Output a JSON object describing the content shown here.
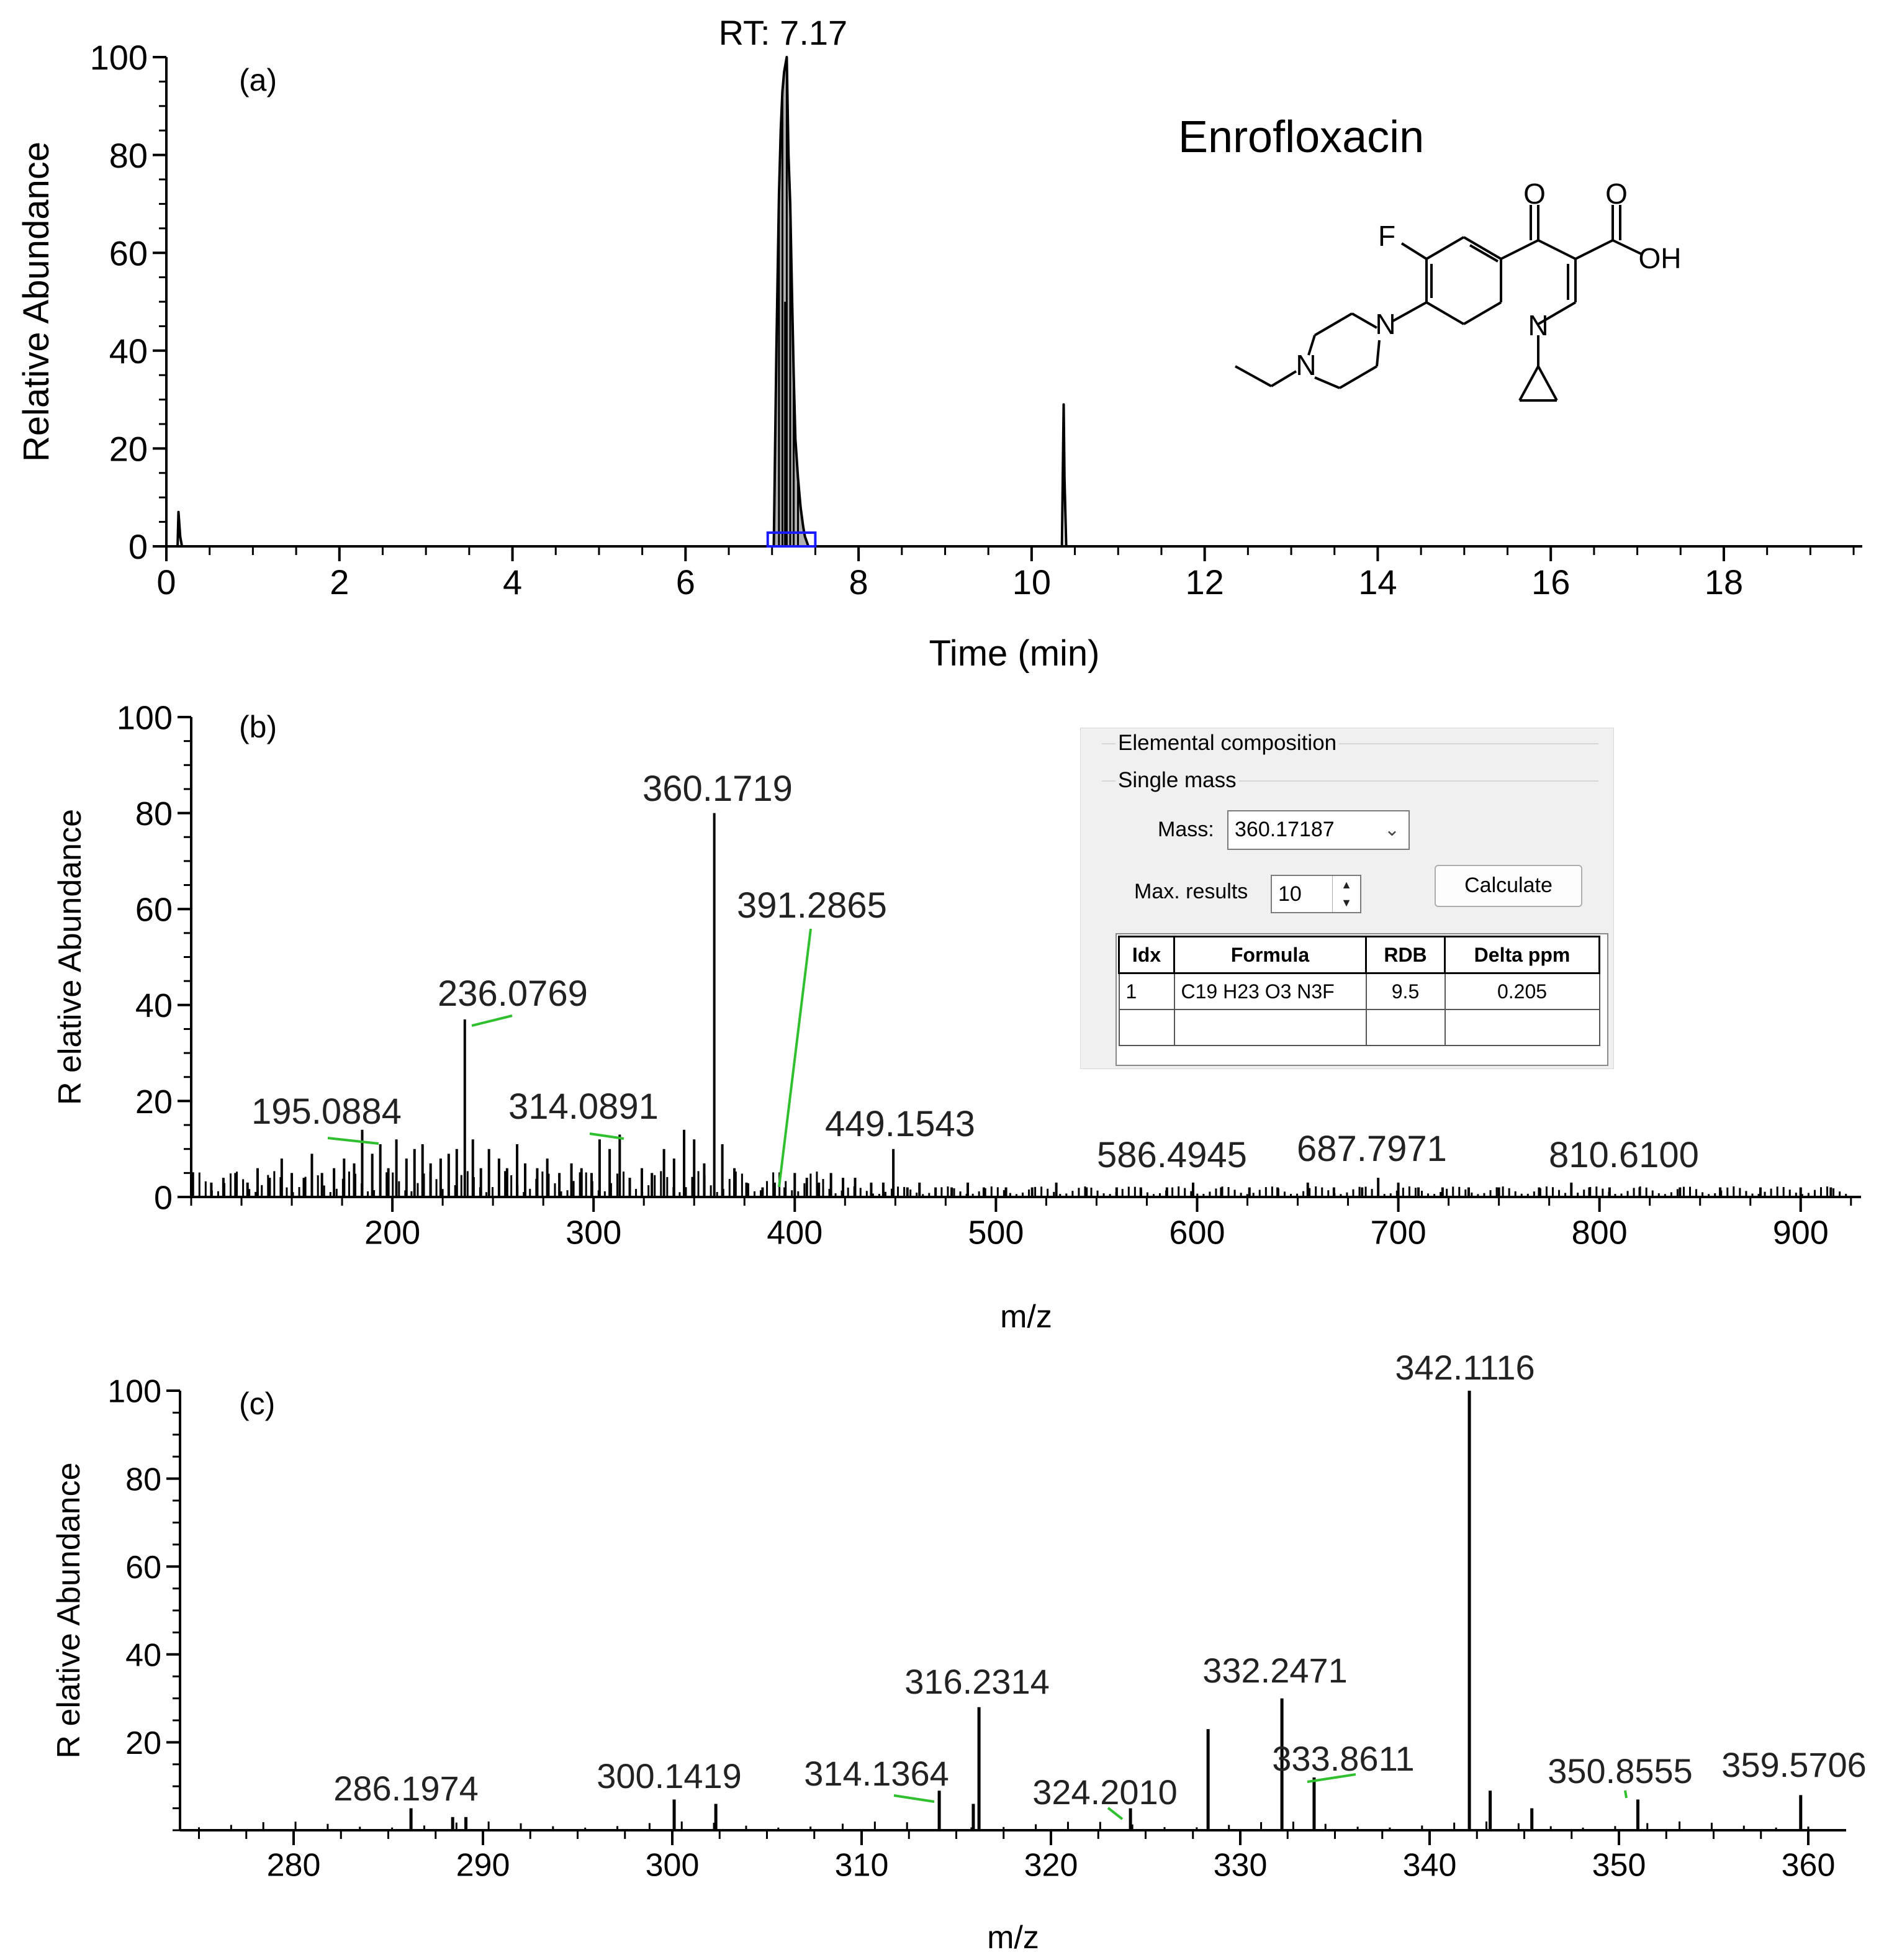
{
  "compound_name": "Enrofloxacin",
  "structure_atoms": {
    "O_keto": "O",
    "O_acid": "O",
    "OH": "OH",
    "F": "F",
    "N_quinolone": "N",
    "N_piperazine_aryl": "N",
    "N_piperazine_ethyl": "N"
  },
  "colors": {
    "line": "#000000",
    "fill_peak": "#b0b0b0",
    "marker_box": "#1a1aff",
    "label_leader": "#2fbf2f"
  },
  "chart_data": [
    {
      "panel": "(a)",
      "type": "line",
      "xlabel": "Time (min)",
      "ylabel": "Relative Abundance",
      "xlim": [
        0,
        19.6
      ],
      "ylim": [
        0,
        100
      ],
      "xticks": [
        0,
        2,
        4,
        6,
        8,
        10,
        12,
        14,
        16,
        18
      ],
      "yticks": [
        0,
        20,
        40,
        60,
        80,
        100
      ],
      "annotation": "RT: 7.17",
      "x": [
        0.0,
        0.13,
        0.14,
        0.16,
        0.18,
        6.9,
        7.02,
        7.05,
        7.08,
        7.1,
        7.12,
        7.14,
        7.16,
        7.17,
        7.19,
        7.21,
        7.23,
        7.25,
        7.27,
        7.3,
        7.33,
        7.36,
        7.38,
        7.42,
        7.5,
        10.3,
        10.35,
        10.37,
        10.38,
        10.4,
        19.6
      ],
      "y": [
        0,
        0,
        7,
        2,
        0,
        0,
        0,
        40,
        72,
        85,
        93,
        97,
        99,
        100,
        80,
        70,
        52,
        35,
        22,
        14,
        8,
        4,
        2,
        0,
        0,
        0,
        0,
        29,
        14,
        0,
        0
      ],
      "box_x_range": [
        6.95,
        7.5
      ]
    },
    {
      "panel": "(b)",
      "type": "bar",
      "xlabel": "m/z",
      "ylabel": "R elative Abundance",
      "xlim": [
        100,
        930
      ],
      "ylim": [
        0,
        100
      ],
      "xticks": [
        200,
        300,
        400,
        500,
        600,
        700,
        800,
        900
      ],
      "yticks": [
        0,
        20,
        40,
        60,
        80,
        100
      ],
      "peaks": {
        "x": [
          110,
          116,
          122,
          128,
          133,
          139,
          145,
          150,
          156,
          160,
          165,
          171,
          176,
          181,
          185,
          190,
          194,
          198,
          202,
          207,
          211,
          215,
          219,
          224,
          228,
          232,
          236,
          240,
          244,
          248,
          253,
          257,
          262,
          266,
          272,
          277,
          283,
          289,
          294,
          299,
          303,
          308,
          313,
          318,
          324,
          329,
          335,
          340,
          345,
          350,
          355,
          360,
          364,
          370,
          376,
          384,
          390,
          395,
          400,
          406,
          412,
          418,
          424,
          430,
          438,
          444,
          449,
          456,
          462,
          470,
          478,
          486,
          494,
          505,
          518,
          530,
          545,
          560,
          572,
          585,
          598,
          612,
          626,
          640,
          655,
          668,
          682,
          690,
          700,
          710,
          722,
          735,
          750,
          770,
          786,
          795,
          805,
          820,
          840,
          860,
          880,
          900,
          915
        ],
        "y": [
          3,
          4,
          5,
          3,
          6,
          4,
          8,
          5,
          4,
          9,
          5,
          6,
          8,
          7,
          14,
          9,
          11,
          6,
          12,
          8,
          10,
          11,
          7,
          8,
          9,
          10,
          37,
          12,
          6,
          10,
          8,
          6,
          11,
          7,
          6,
          8,
          5,
          7,
          6,
          5,
          12,
          10,
          13,
          4,
          6,
          5,
          10,
          8,
          14,
          12,
          7,
          80,
          11,
          6,
          3,
          2,
          3,
          2,
          5,
          4,
          3,
          5,
          4,
          4,
          3,
          3,
          10,
          2,
          3,
          2,
          2,
          3,
          2,
          2,
          2,
          3,
          2,
          2,
          2,
          2,
          3,
          2,
          2,
          2,
          3,
          2,
          2,
          4,
          3,
          2,
          2,
          2,
          2,
          2,
          3,
          2,
          2,
          2,
          2,
          2,
          2,
          2,
          2
        ]
      },
      "labels": [
        {
          "text": "195.0884",
          "mz": 195.0884
        },
        {
          "text": "236.0769",
          "mz": 236.0769
        },
        {
          "text": "314.0891",
          "mz": 314.0891
        },
        {
          "text": "360.1719",
          "mz": 360.1719
        },
        {
          "text": "391.2865",
          "mz": 391.2865
        },
        {
          "text": "449.1543",
          "mz": 449.1543
        },
        {
          "text": "586.4945",
          "mz": 586.4945
        },
        {
          "text": "687.7971",
          "mz": 687.7971
        },
        {
          "text": "810.6100",
          "mz": 810.61
        }
      ]
    },
    {
      "panel": "(c)",
      "type": "bar",
      "xlabel": "m/z",
      "ylabel": "R elative Abundance",
      "xlim": [
        274,
        362
      ],
      "ylim": [
        0,
        100
      ],
      "xticks": [
        280,
        290,
        300,
        310,
        320,
        330,
        340,
        350,
        360
      ],
      "yticks": [
        20,
        40,
        60,
        80,
        100
      ],
      "peaks": {
        "x": [
          286.2,
          288.4,
          289.1,
          300.1,
          302.3,
          314.1,
          315.9,
          316.2,
          324.2,
          328.3,
          332.2,
          333.9,
          342.1,
          343.2,
          345.4,
          351.0,
          359.6
        ],
        "y": [
          5,
          3,
          3,
          7,
          6,
          9,
          6,
          28,
          5,
          23,
          30,
          12,
          100,
          9,
          5,
          7,
          8
        ]
      },
      "labels": [
        {
          "text": "286.1974",
          "mz": 286.1974
        },
        {
          "text": "300.1419",
          "mz": 300.1419
        },
        {
          "text": "314.1364",
          "mz": 314.1364
        },
        {
          "text": "316.2314",
          "mz": 316.2314
        },
        {
          "text": "324.2010",
          "mz": 324.201
        },
        {
          "text": "332.2471",
          "mz": 332.2471
        },
        {
          "text": "333.8611",
          "mz": 333.8611
        },
        {
          "text": "342.1116",
          "mz": 342.1116
        },
        {
          "text": "350.8555",
          "mz": 350.8555
        },
        {
          "text": "359.5706",
          "mz": 359.5706
        }
      ]
    }
  ],
  "dialog": {
    "group_title": "Elemental composition",
    "subgroup_title": "Single mass",
    "mass_label": "Mass:",
    "mass_value": "360.17187",
    "max_results_label": "Max. results",
    "max_results_value": "10",
    "calculate_label": "Calculate",
    "table": {
      "headers": [
        "Idx",
        "Formula",
        "RDB",
        "Delta  ppm"
      ],
      "rows": [
        [
          "1",
          "C19 H23 O3 N3F",
          "9.5",
          "0.205"
        ]
      ]
    }
  }
}
